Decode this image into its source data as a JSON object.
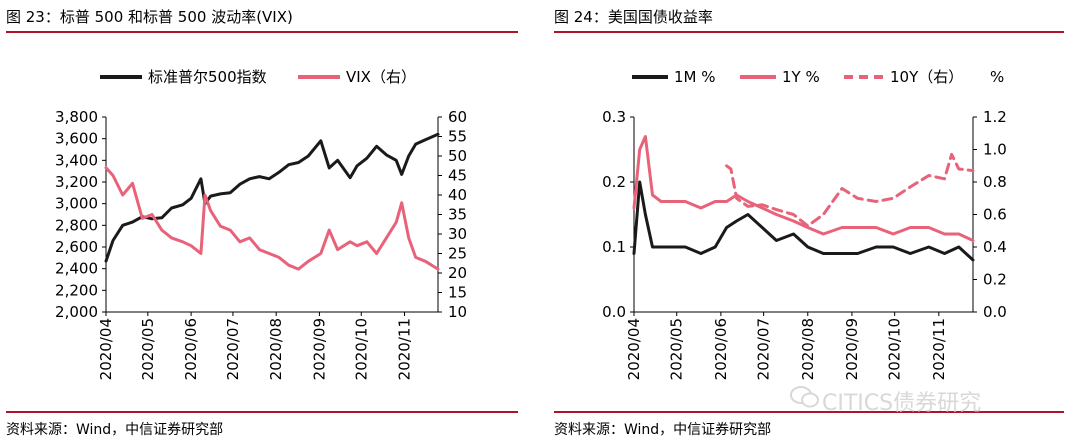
{
  "left": {
    "title": "图 23：标普 500 和标普 500 波动率(VIX)",
    "source": "资料来源：Wind，中信证券研究部"
  },
  "right": {
    "title": "图 24：美国国债收益率",
    "source": "资料来源：Wind，中信证券研究部"
  },
  "watermark": "CITICS债券研究",
  "colors": {
    "rule": "#b0112b",
    "black_series": "#1a1a1a",
    "pink_series": "#e8637a"
  },
  "chart_data": [
    {
      "type": "line",
      "x_type": "date",
      "x_range": [
        "2020-04-01",
        "2020-11-25"
      ],
      "x_ticks": [
        "2020/04",
        "2020/05",
        "2020/06",
        "2020/07",
        "2020/08",
        "2020/09",
        "2020/10",
        "2020/11"
      ],
      "ylim": [
        2000,
        3800
      ],
      "y_ticks": [
        "2,000",
        "2,200",
        "2,400",
        "2,600",
        "2,800",
        "3,000",
        "3,200",
        "3,400",
        "3,600",
        "3,800"
      ],
      "y2lim": [
        10,
        60
      ],
      "y2_ticks": [
        "10",
        "15",
        "20",
        "25",
        "30",
        "35",
        "40",
        "45",
        "50",
        "55",
        "60"
      ],
      "legend_position": "top",
      "series": [
        {
          "name": "标准普尔500指数",
          "axis": "left",
          "color": "#1a1a1a",
          "dash": false,
          "x": [
            "2020-04-01",
            "2020-04-06",
            "2020-04-13",
            "2020-04-20",
            "2020-04-27",
            "2020-05-04",
            "2020-05-11",
            "2020-05-18",
            "2020-05-26",
            "2020-06-01",
            "2020-06-08",
            "2020-06-11",
            "2020-06-15",
            "2020-06-22",
            "2020-06-29",
            "2020-07-06",
            "2020-07-13",
            "2020-07-20",
            "2020-07-27",
            "2020-08-03",
            "2020-08-10",
            "2020-08-17",
            "2020-08-24",
            "2020-09-02",
            "2020-09-08",
            "2020-09-14",
            "2020-09-23",
            "2020-09-28",
            "2020-10-05",
            "2020-10-12",
            "2020-10-19",
            "2020-10-26",
            "2020-10-30",
            "2020-11-04",
            "2020-11-09",
            "2020-11-16",
            "2020-11-25"
          ],
          "y": [
            2470,
            2660,
            2800,
            2830,
            2880,
            2860,
            2870,
            2960,
            2990,
            3050,
            3230,
            3000,
            3070,
            3090,
            3100,
            3180,
            3230,
            3250,
            3230,
            3290,
            3360,
            3380,
            3440,
            3580,
            3330,
            3400,
            3240,
            3350,
            3420,
            3530,
            3450,
            3400,
            3270,
            3440,
            3550,
            3590,
            3640
          ]
        },
        {
          "name": "VIX（右）",
          "axis": "right",
          "color": "#e8637a",
          "dash": false,
          "x": [
            "2020-04-01",
            "2020-04-06",
            "2020-04-13",
            "2020-04-20",
            "2020-04-27",
            "2020-05-04",
            "2020-05-11",
            "2020-05-18",
            "2020-05-26",
            "2020-06-01",
            "2020-06-08",
            "2020-06-11",
            "2020-06-15",
            "2020-06-22",
            "2020-06-29",
            "2020-07-06",
            "2020-07-13",
            "2020-07-20",
            "2020-07-27",
            "2020-08-03",
            "2020-08-10",
            "2020-08-17",
            "2020-08-24",
            "2020-09-02",
            "2020-09-08",
            "2020-09-14",
            "2020-09-23",
            "2020-09-28",
            "2020-10-05",
            "2020-10-12",
            "2020-10-19",
            "2020-10-26",
            "2020-10-30",
            "2020-11-04",
            "2020-11-09",
            "2020-11-16",
            "2020-11-25"
          ],
          "y": [
            47,
            45,
            40,
            43,
            34,
            35,
            31,
            29,
            28,
            27,
            25,
            40,
            36,
            32,
            31,
            28,
            29,
            26,
            25,
            24,
            22,
            21,
            23,
            25,
            31,
            26,
            28,
            27,
            28,
            25,
            29,
            33,
            38,
            29,
            24,
            23,
            21
          ]
        }
      ]
    },
    {
      "type": "line",
      "x_type": "date",
      "x_range": [
        "2020-04-01",
        "2020-11-25"
      ],
      "x_ticks": [
        "2020/04",
        "2020/05",
        "2020/06",
        "2020/07",
        "2020/08",
        "2020/09",
        "2020/10",
        "2020/11"
      ],
      "ylim": [
        0,
        0.3
      ],
      "y_ticks": [
        "0.0",
        "0.1",
        "0.2",
        "0.3"
      ],
      "y2lim": [
        0,
        1.2
      ],
      "y2_ticks": [
        "0.0",
        "0.2",
        "0.4",
        "0.6",
        "0.8",
        "1.0",
        "1.2"
      ],
      "legend_position": "top",
      "legend_unit": "%",
      "series": [
        {
          "name": "1M %",
          "axis": "left",
          "color": "#1a1a1a",
          "dash": false,
          "x": [
            "2020-04-01",
            "2020-04-05",
            "2020-04-09",
            "2020-04-14",
            "2020-04-20",
            "2020-04-28",
            "2020-05-07",
            "2020-05-18",
            "2020-05-28",
            "2020-06-05",
            "2020-06-12",
            "2020-06-20",
            "2020-06-30",
            "2020-07-10",
            "2020-07-22",
            "2020-08-01",
            "2020-08-12",
            "2020-08-25",
            "2020-09-05",
            "2020-09-18",
            "2020-09-30",
            "2020-10-12",
            "2020-10-25",
            "2020-11-05",
            "2020-11-15",
            "2020-11-25"
          ],
          "y": [
            0.09,
            0.2,
            0.15,
            0.1,
            0.1,
            0.1,
            0.1,
            0.09,
            0.1,
            0.13,
            0.14,
            0.15,
            0.13,
            0.11,
            0.12,
            0.1,
            0.09,
            0.09,
            0.09,
            0.1,
            0.1,
            0.09,
            0.1,
            0.09,
            0.1,
            0.08
          ]
        },
        {
          "name": "1Y %",
          "axis": "left",
          "color": "#e8637a",
          "dash": false,
          "x": [
            "2020-04-01",
            "2020-04-05",
            "2020-04-09",
            "2020-04-14",
            "2020-04-20",
            "2020-04-28",
            "2020-05-07",
            "2020-05-18",
            "2020-05-28",
            "2020-06-05",
            "2020-06-12",
            "2020-06-20",
            "2020-06-30",
            "2020-07-10",
            "2020-07-22",
            "2020-08-01",
            "2020-08-12",
            "2020-08-25",
            "2020-09-05",
            "2020-09-18",
            "2020-09-30",
            "2020-10-12",
            "2020-10-25",
            "2020-11-05",
            "2020-11-15",
            "2020-11-25"
          ],
          "y": [
            0.16,
            0.25,
            0.27,
            0.18,
            0.17,
            0.17,
            0.17,
            0.16,
            0.17,
            0.17,
            0.18,
            0.17,
            0.16,
            0.15,
            0.14,
            0.13,
            0.12,
            0.13,
            0.13,
            0.13,
            0.12,
            0.13,
            0.13,
            0.12,
            0.12,
            0.11
          ]
        },
        {
          "name": "10Y（右）",
          "axis": "right",
          "color": "#e8637a",
          "dash": true,
          "x": [
            "2020-06-05",
            "2020-06-08",
            "2020-06-12",
            "2020-06-20",
            "2020-06-30",
            "2020-07-10",
            "2020-07-22",
            "2020-08-01",
            "2020-08-12",
            "2020-08-25",
            "2020-09-05",
            "2020-09-18",
            "2020-09-30",
            "2020-10-12",
            "2020-10-25",
            "2020-11-05",
            "2020-11-10",
            "2020-11-15",
            "2020-11-25"
          ],
          "y": [
            0.9,
            0.88,
            0.7,
            0.65,
            0.66,
            0.63,
            0.6,
            0.53,
            0.6,
            0.76,
            0.7,
            0.68,
            0.7,
            0.77,
            0.84,
            0.82,
            0.97,
            0.88,
            0.87
          ]
        }
      ]
    }
  ]
}
